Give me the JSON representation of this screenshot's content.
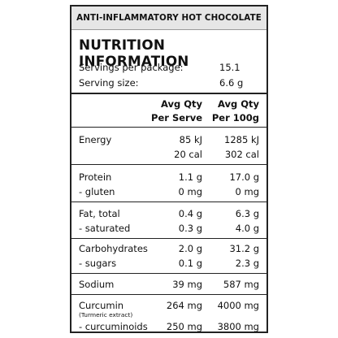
{
  "banner": "ANTI-INFLAMMATORY HOT CHOCOLATE",
  "title": "NUTRITION INFORMATION",
  "servings": [
    {
      "label": "Servings per package:",
      "value": "15.1"
    },
    {
      "label": "Serving size:",
      "value": "6.6 g"
    }
  ],
  "header": {
    "col1_line1": "Avg Qty",
    "col1_line2": "Per Serve",
    "col2_line1": "Avg Qty",
    "col2_line2": "Per 100g"
  },
  "rows": {
    "energy": {
      "label": "Energy",
      "serve_kj": "85 kJ",
      "hundred_kj": "1285 kJ",
      "serve_cal": "20 cal",
      "hundred_cal": "302 cal"
    },
    "protein": {
      "label": "Protein",
      "serve": "1.1 g",
      "hundred": "17.0 g"
    },
    "gluten": {
      "label": "-  gluten",
      "serve": "0 mg",
      "hundred": "0 mg"
    },
    "fat": {
      "label": "Fat, total",
      "serve": "0.4 g",
      "hundred": "6.3 g"
    },
    "saturated": {
      "label": "-  saturated",
      "serve": "0.3 g",
      "hundred": "4.0 g"
    },
    "carbohydrates": {
      "label": "Carbohydrates",
      "serve": "2.0 g",
      "hundred": "31.2 g"
    },
    "sugars": {
      "label": "-  sugars",
      "serve": "0.1 g",
      "hundred": "2.3 g"
    },
    "sodium": {
      "label": "Sodium",
      "serve": "39 mg",
      "hundred": "587 mg"
    },
    "curcumin": {
      "label": "Curcumin",
      "sublabel": "(Turmeric extract)",
      "serve": "264 mg",
      "hundred": "4000 mg"
    },
    "curcuminoids": {
      "label": "-  curcuminoids",
      "serve": "250 mg",
      "hundred": "3800 mg"
    }
  }
}
